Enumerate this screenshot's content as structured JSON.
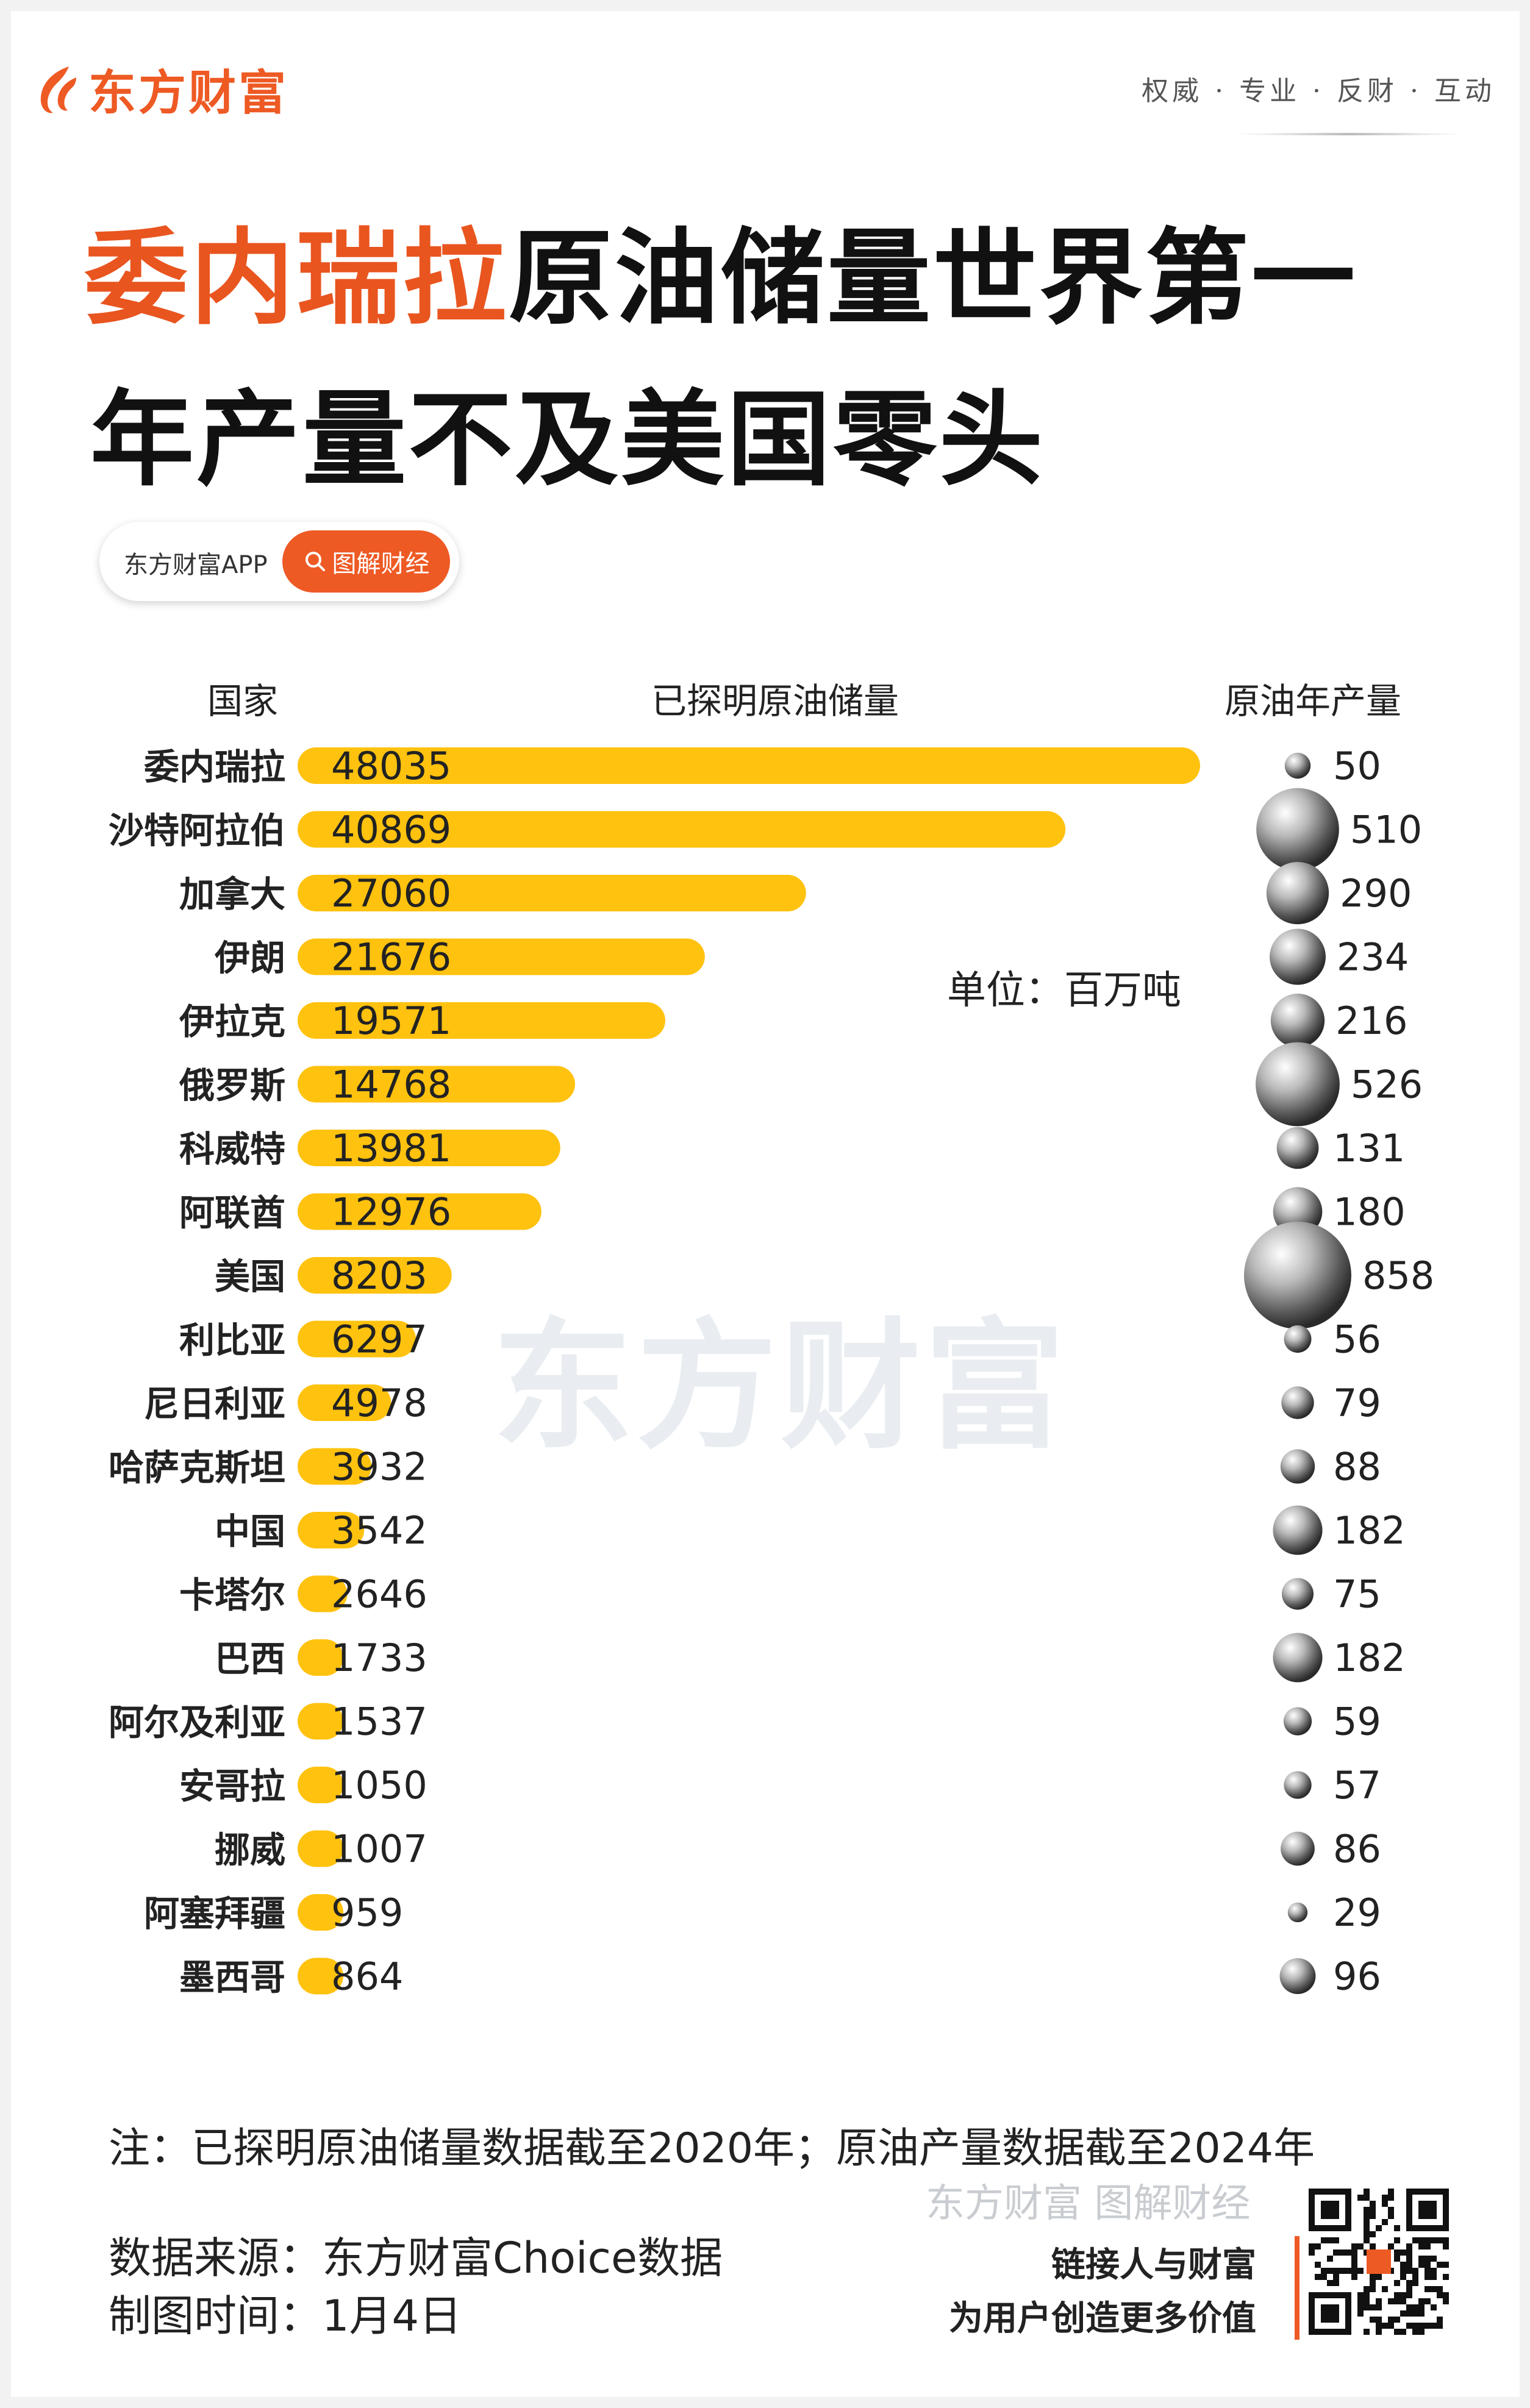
{
  "brand": {
    "name": "东方财富",
    "icon": "eastmoney-flame-logo"
  },
  "slogan": "权威 · 专业 · 反财 · 互动",
  "title": {
    "line1_highlight": "委内瑞拉",
    "line1_rest": "原油储量世界第一",
    "line2": "年产量不及美国零头"
  },
  "pill": {
    "app_label": "东方财富APP",
    "button_label": "图解财经",
    "button_icon": "search-icon"
  },
  "headers": {
    "country": "国家",
    "reserves": "已探明原油储量",
    "production": "原油年产量"
  },
  "unit": "单位：百万吨",
  "watermark": "东方财富",
  "colors": {
    "bar": "#ffc20e",
    "accent": "#ee5a24",
    "bubble": "silver-sphere"
  },
  "chart_data": {
    "type": "bar",
    "categories": [
      "委内瑞拉",
      "沙特阿拉伯",
      "加拿大",
      "伊朗",
      "伊拉克",
      "俄罗斯",
      "科威特",
      "阿联酋",
      "美国",
      "利比亚",
      "尼日利亚",
      "哈萨克斯坦",
      "中国",
      "卡塔尔",
      "巴西",
      "阿尔及利亚",
      "安哥拉",
      "挪威",
      "阿塞拜疆",
      "墨西哥"
    ],
    "series": [
      {
        "name": "已探明原油储量",
        "values": [
          48035,
          40869,
          27060,
          21676,
          19571,
          14768,
          13981,
          12976,
          8203,
          6297,
          4978,
          3932,
          3542,
          2646,
          1733,
          1537,
          1050,
          1007,
          959,
          864
        ]
      },
      {
        "name": "原油年产量",
        "values": [
          50,
          510,
          290,
          234,
          216,
          526,
          131,
          180,
          858,
          56,
          79,
          88,
          182,
          75,
          182,
          59,
          57,
          86,
          29,
          96
        ]
      }
    ],
    "unit": "单位：百万吨"
  },
  "footer": {
    "note": "注：已探明原油储量数据截至2020年；原油产量数据截至2024年",
    "source": "数据来源：东方财富Choice数据",
    "date": "制图时间：1月4日",
    "watermark": "东方财富 图解财经",
    "slogan1": "链接人与财富",
    "slogan2": "为用户创造更多价值",
    "qr": "qr-code"
  }
}
